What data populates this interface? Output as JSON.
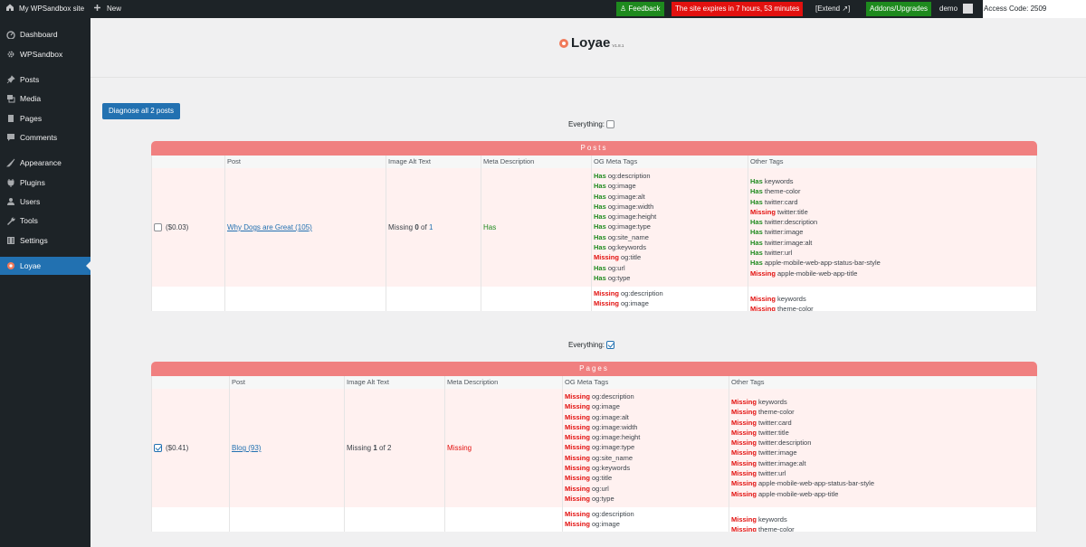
{
  "admin_bar": {
    "site_name": "My WPSandbox site",
    "new_label": "New",
    "feedback": "Feedback",
    "expires": "The site expires in  7 hours, 53 minutes",
    "extend": "[Extend ↗]",
    "addons": "Addons/Upgrades",
    "user": "demo",
    "access_code": "Access Code: 2509"
  },
  "sidebar": {
    "items": [
      {
        "label": "Dashboard",
        "icon": "dashboard-icon"
      },
      {
        "label": "WPSandbox",
        "icon": "gear-icon"
      },
      {
        "label": "Posts",
        "icon": "pin-icon"
      },
      {
        "label": "Media",
        "icon": "media-icon"
      },
      {
        "label": "Pages",
        "icon": "pages-icon"
      },
      {
        "label": "Comments",
        "icon": "comments-icon"
      },
      {
        "label": "Appearance",
        "icon": "brush-icon"
      },
      {
        "label": "Plugins",
        "icon": "plugin-icon"
      },
      {
        "label": "Users",
        "icon": "users-icon"
      },
      {
        "label": "Tools",
        "icon": "wrench-icon"
      },
      {
        "label": "Settings",
        "icon": "settings-icon"
      },
      {
        "label": "Loyae",
        "icon": "loyae-icon",
        "active": true
      }
    ]
  },
  "plugin": {
    "name": "Loyae",
    "version": "V1.8.1"
  },
  "diagnose_button": "Diagnose all 2 posts",
  "everything_label": "Everything:",
  "columns": [
    "Post",
    "Image Alt Text",
    "Meta Description",
    "OG Meta Tags",
    "Other Tags"
  ],
  "posts": {
    "title": "Posts",
    "everything_checked": false,
    "row": {
      "checked": false,
      "price": "($0.03)",
      "post_link": "Why Dogs are Great (105)",
      "alt_missing": "Missing",
      "alt_count": "0",
      "alt_of": "of",
      "alt_total": "1",
      "meta": "Has",
      "og_tags": [
        {
          "status": "Has",
          "tag": "og:description"
        },
        {
          "status": "Has",
          "tag": "og:image"
        },
        {
          "status": "Has",
          "tag": "og:image:alt"
        },
        {
          "status": "Has",
          "tag": "og:image:width"
        },
        {
          "status": "Has",
          "tag": "og:image:height"
        },
        {
          "status": "Has",
          "tag": "og:image:type"
        },
        {
          "status": "Has",
          "tag": "og:site_name"
        },
        {
          "status": "Has",
          "tag": "og:keywords"
        },
        {
          "status": "Missing",
          "tag": "og:title"
        },
        {
          "status": "Has",
          "tag": "og:url"
        },
        {
          "status": "Has",
          "tag": "og:type"
        }
      ],
      "other_tags": [
        {
          "status": "Has",
          "tag": "keywords"
        },
        {
          "status": "Has",
          "tag": "theme-color"
        },
        {
          "status": "Has",
          "tag": "twitter:card"
        },
        {
          "status": "Missing",
          "tag": "twitter:title"
        },
        {
          "status": "Has",
          "tag": "twitter:description"
        },
        {
          "status": "Has",
          "tag": "twitter:image"
        },
        {
          "status": "Has",
          "tag": "twitter:image:alt"
        },
        {
          "status": "Has",
          "tag": "twitter:url"
        },
        {
          "status": "Has",
          "tag": "apple-mobile-web-app-status-bar-style"
        },
        {
          "status": "Missing",
          "tag": "apple-mobile-web-app-title"
        }
      ]
    },
    "partial_row": {
      "og_tags": [
        {
          "status": "Missing",
          "tag": "og:description"
        },
        {
          "status": "Missing",
          "tag": "og:image"
        }
      ],
      "other_tags": [
        {
          "status": "Missing",
          "tag": "keywords"
        },
        {
          "status": "Missing",
          "tag": "theme-color"
        }
      ]
    }
  },
  "pages": {
    "title": "Pages",
    "everything_checked": true,
    "row": {
      "checked": true,
      "price": "($0.41)",
      "post_link": "Blog (93)",
      "alt_missing": "Missing",
      "alt_count": "1",
      "alt_of": "of",
      "alt_total": "2",
      "meta": "Missing",
      "og_tags": [
        {
          "status": "Missing",
          "tag": "og:description"
        },
        {
          "status": "Missing",
          "tag": "og:image"
        },
        {
          "status": "Missing",
          "tag": "og:image:alt"
        },
        {
          "status": "Missing",
          "tag": "og:image:width"
        },
        {
          "status": "Missing",
          "tag": "og:image:height"
        },
        {
          "status": "Missing",
          "tag": "og:image:type"
        },
        {
          "status": "Missing",
          "tag": "og:site_name"
        },
        {
          "status": "Missing",
          "tag": "og:keywords"
        },
        {
          "status": "Missing",
          "tag": "og:title"
        },
        {
          "status": "Missing",
          "tag": "og:url"
        },
        {
          "status": "Missing",
          "tag": "og:type"
        }
      ],
      "other_tags": [
        {
          "status": "Missing",
          "tag": "keywords"
        },
        {
          "status": "Missing",
          "tag": "theme-color"
        },
        {
          "status": "Missing",
          "tag": "twitter:card"
        },
        {
          "status": "Missing",
          "tag": "twitter:title"
        },
        {
          "status": "Missing",
          "tag": "twitter:description"
        },
        {
          "status": "Missing",
          "tag": "twitter:image"
        },
        {
          "status": "Missing",
          "tag": "twitter:image:alt"
        },
        {
          "status": "Missing",
          "tag": "twitter:url"
        },
        {
          "status": "Missing",
          "tag": "apple-mobile-web-app-status-bar-style"
        },
        {
          "status": "Missing",
          "tag": "apple-mobile-web-app-title"
        }
      ]
    },
    "partial_row": {
      "og_tags": [
        {
          "status": "Missing",
          "tag": "og:description"
        },
        {
          "status": "Missing",
          "tag": "og:image"
        }
      ],
      "other_tags": [
        {
          "status": "Missing",
          "tag": "keywords"
        },
        {
          "status": "Missing",
          "tag": "theme-color"
        }
      ]
    }
  },
  "colors": {
    "accent": "#2271b1",
    "section_header": "#f08080",
    "has": "#1e8a1e",
    "missing": "#e2110f",
    "row_pink": "#fff1f0"
  }
}
